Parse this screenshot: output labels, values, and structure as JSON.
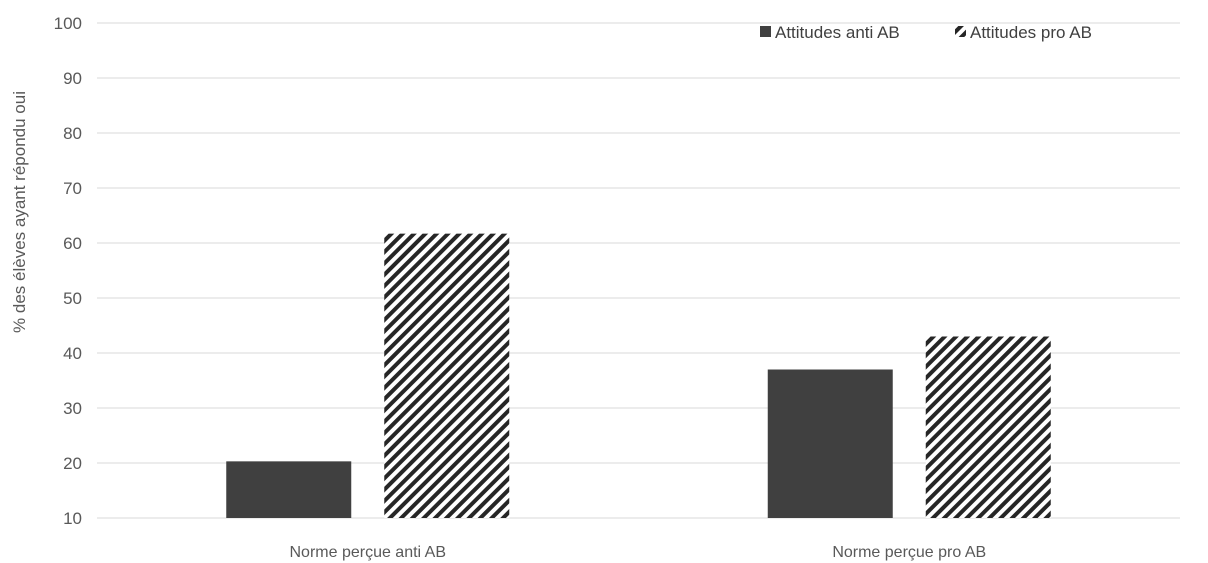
{
  "chart_data": {
    "type": "bar",
    "title": "",
    "xlabel": "",
    "ylabel": "% des élèves ayant répondu oui",
    "ylim": [
      10,
      100
    ],
    "yticks": [
      10,
      20,
      30,
      40,
      50,
      60,
      70,
      80,
      90,
      100
    ],
    "grid": true,
    "legend_position": "top-right",
    "categories": [
      "Norme perçue anti AB",
      "Norme perçue pro AB"
    ],
    "series": [
      {
        "name": "Attitudes anti AB",
        "values": [
          20.3,
          37.0
        ],
        "color": "#404040",
        "pattern": "solid"
      },
      {
        "name": "Attitudes pro AB",
        "values": [
          61.7,
          43.0
        ],
        "color": "#262626",
        "pattern": "diagonal-stripes"
      }
    ]
  }
}
